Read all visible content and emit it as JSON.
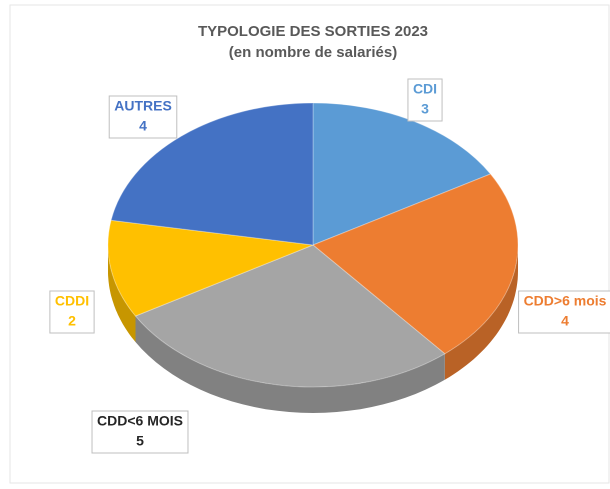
{
  "chart_data": {
    "type": "pie3d",
    "title": "TYPOLOGIE DES SORTIES 2023",
    "subtitle": "(en nombre de salariés)",
    "categories": [
      "CDI",
      "CDD>6 mois",
      "CDD<6 MOIS",
      "CDDI",
      "AUTRES"
    ],
    "values": [
      3,
      4,
      5,
      2,
      4
    ],
    "colors": [
      "#5b9bd5",
      "#ed7d31",
      "#a5a5a5",
      "#ffc000",
      "#4472c4"
    ],
    "label_colors": [
      "#5b9bd5",
      "#ed7d31",
      "#262626",
      "#ffc000",
      "#4472c4"
    ]
  }
}
